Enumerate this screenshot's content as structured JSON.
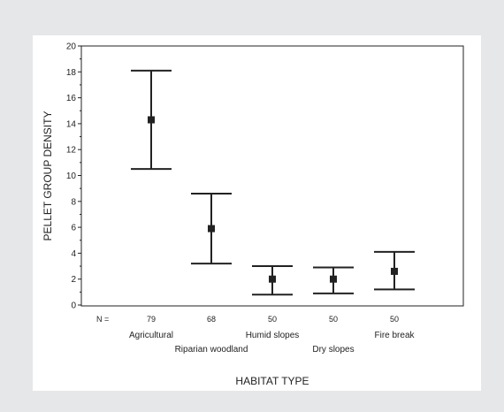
{
  "chart_data": {
    "type": "errorbar",
    "xlabel": "HABITAT TYPE",
    "ylabel": "PELLET GROUP DENSITY",
    "ylim": [
      0,
      20
    ],
    "yticks": [
      0,
      2,
      4,
      6,
      8,
      10,
      12,
      14,
      16,
      18,
      20
    ],
    "grid": false,
    "n_prefix": "N =",
    "categories": [
      "Agricultural",
      "Riparian woodland",
      "Humid slopes",
      "Dry slopes",
      "Fire break"
    ],
    "n": [
      "79",
      "68",
      "50",
      "50",
      "50"
    ],
    "means": [
      14.3,
      5.9,
      2.0,
      2.0,
      2.6
    ],
    "lower": [
      10.5,
      3.2,
      0.8,
      0.9,
      1.2
    ],
    "upper": [
      18.1,
      8.6,
      3.0,
      2.9,
      4.1
    ]
  }
}
